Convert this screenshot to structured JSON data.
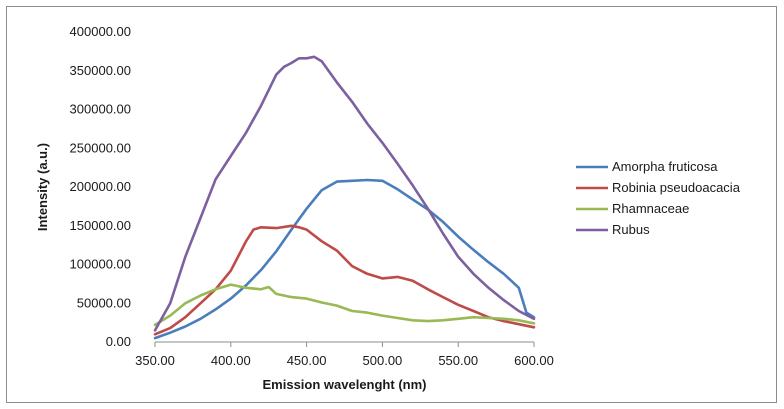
{
  "chart_data": {
    "type": "line",
    "title": "",
    "xlabel": "Emission wavelenght (nm)",
    "ylabel": "Intensity (a.u.)",
    "xlim": [
      350,
      600
    ],
    "ylim": [
      0,
      400000
    ],
    "x_ticks": [
      "350.00",
      "400.00",
      "450.00",
      "500.00",
      "550.00",
      "600.00"
    ],
    "y_ticks": [
      "0.00",
      "50000.00",
      "100000.00",
      "150000.00",
      "200000.00",
      "250000.00",
      "300000.00",
      "350000.00",
      "400000.00"
    ],
    "grid": false,
    "legend_position": "right",
    "series": [
      {
        "name": "Amorpha fruticosa",
        "color": "#4a7ebb",
        "x": [
          350,
          360,
          370,
          380,
          390,
          400,
          410,
          420,
          430,
          440,
          450,
          460,
          470,
          480,
          490,
          500,
          510,
          520,
          530,
          540,
          550,
          560,
          570,
          580,
          590,
          595,
          600
        ],
        "y": [
          5000,
          12000,
          20000,
          30000,
          42000,
          56000,
          73000,
          93000,
          117000,
          145000,
          172000,
          196000,
          207000,
          208000,
          209000,
          208000,
          197000,
          184000,
          171000,
          155000,
          136000,
          119000,
          103000,
          88000,
          70000,
          38000,
          32000
        ]
      },
      {
        "name": "Robinia pseudoacacia",
        "color": "#be4b48",
        "x": [
          350,
          360,
          370,
          380,
          390,
          400,
          410,
          415,
          420,
          430,
          440,
          445,
          450,
          460,
          470,
          480,
          490,
          500,
          510,
          520,
          530,
          540,
          550,
          560,
          570,
          580,
          590,
          600
        ],
        "y": [
          10000,
          18000,
          32000,
          50000,
          68000,
          92000,
          130000,
          145000,
          148000,
          147000,
          150000,
          148000,
          145000,
          130000,
          118000,
          98000,
          88000,
          82000,
          84000,
          79000,
          68000,
          58000,
          48000,
          40000,
          32000,
          27000,
          23000,
          19000
        ]
      },
      {
        "name": "Rhamnaceae",
        "color": "#98b954",
        "x": [
          350,
          360,
          370,
          380,
          390,
          400,
          410,
          420,
          425,
          430,
          440,
          450,
          460,
          470,
          480,
          490,
          500,
          510,
          520,
          530,
          540,
          550,
          560,
          570,
          580,
          590,
          600
        ],
        "y": [
          22000,
          34000,
          50000,
          60000,
          68000,
          74000,
          70000,
          68000,
          71000,
          62000,
          58000,
          56000,
          51000,
          47000,
          40000,
          38000,
          34000,
          31000,
          28000,
          27000,
          28000,
          30000,
          32000,
          31000,
          30000,
          28000,
          24000
        ]
      },
      {
        "name": "Rubus",
        "color": "#7d60a0",
        "x": [
          350,
          360,
          370,
          380,
          390,
          400,
          410,
          420,
          430,
          435,
          440,
          445,
          450,
          455,
          460,
          470,
          480,
          490,
          500,
          510,
          520,
          530,
          540,
          550,
          560,
          570,
          580,
          590,
          600
        ],
        "y": [
          15000,
          50000,
          110000,
          160000,
          210000,
          240000,
          270000,
          305000,
          345000,
          355000,
          360000,
          366000,
          366000,
          368000,
          362000,
          335000,
          310000,
          282000,
          257000,
          230000,
          202000,
          172000,
          140000,
          110000,
          88000,
          70000,
          54000,
          40000,
          30000
        ]
      }
    ]
  }
}
